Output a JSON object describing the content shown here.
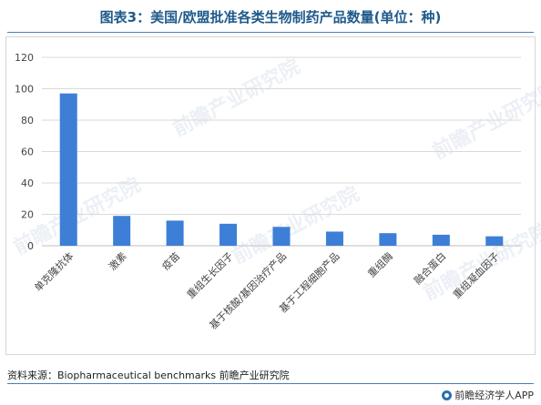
{
  "header": {
    "title": "图表3：美国/欧盟批准各类生物制药产品数量(单位：种)"
  },
  "footer": {
    "source": "资料来源：Biopharmaceutical benchmarks 前瞻产业研究院",
    "brand": "前瞻经济学人APP",
    "brand_icon": "qianzhan-logo-icon"
  },
  "colors": {
    "bar": "#3d7fd6",
    "grid": "#d9d9d9",
    "title": "#1f5a8c"
  },
  "chart_data": {
    "type": "bar",
    "title": "图表3：美国/欧盟批准各类生物制药产品数量(单位：种)",
    "categories": [
      "单克隆抗体",
      "激素",
      "疫苗",
      "重组生长因子",
      "基于核酸/基因治疗产品",
      "基于工程细胞产品",
      "重组酶",
      "融合蛋白",
      "重组凝血因子"
    ],
    "values": [
      97,
      19,
      16,
      14,
      12,
      9,
      8,
      7,
      6
    ],
    "ylim": [
      0,
      120
    ],
    "yticks": [
      0,
      20,
      40,
      60,
      80,
      100,
      120
    ],
    "xlabel": "",
    "ylabel": "",
    "grid": true,
    "legend": "none"
  }
}
